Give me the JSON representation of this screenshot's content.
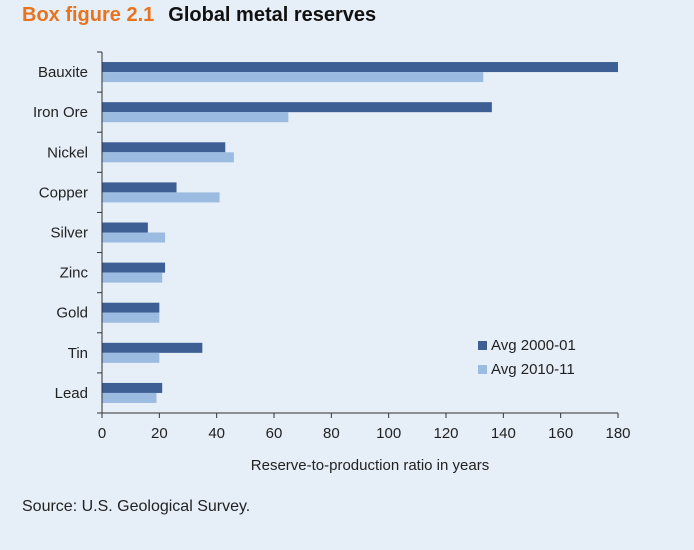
{
  "header": {
    "label": "Box figure 2.1",
    "title": "Global metal reserves"
  },
  "source": "Source: U.S. Geological Survey.",
  "colors": {
    "series1": "#3d5f94",
    "series2": "#9cbbe0",
    "background": "#e6eef7",
    "accent": "#e8731c"
  },
  "chart_data": {
    "type": "bar",
    "orientation": "horizontal",
    "categories": [
      "Bauxite",
      "Iron Ore",
      "Nickel",
      "Copper",
      "Silver",
      "Zinc",
      "Gold",
      "Tin",
      "Lead"
    ],
    "series": [
      {
        "name": "Avg 2000-01",
        "values": [
          180,
          136,
          43,
          26,
          16,
          22,
          20,
          35,
          21
        ]
      },
      {
        "name": "Avg 2010-11",
        "values": [
          133,
          65,
          46,
          41,
          22,
          21,
          20,
          20,
          19
        ]
      }
    ],
    "xlabel": "Reserve-to-production ratio in years",
    "ylabel": "",
    "xlim": [
      0,
      180
    ],
    "xticks": [
      0,
      20,
      40,
      60,
      80,
      100,
      120,
      140,
      160,
      180
    ],
    "grid": false,
    "legend": "bottom-right"
  }
}
